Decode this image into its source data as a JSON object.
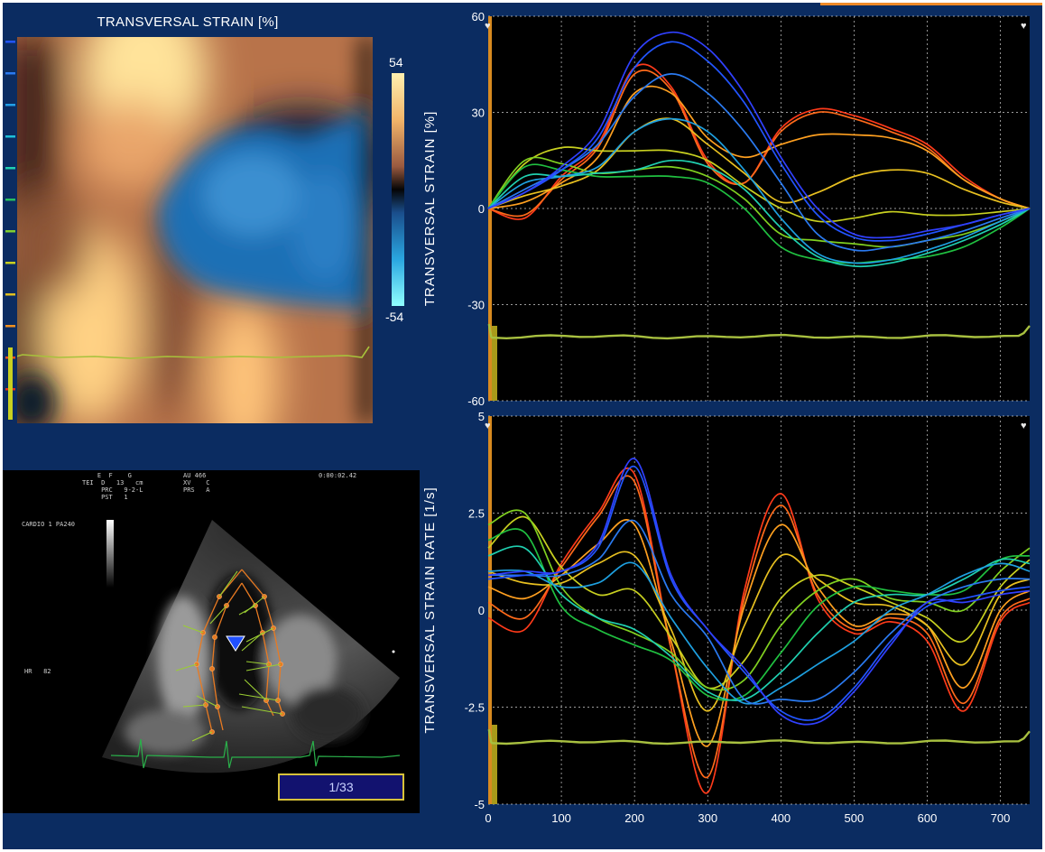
{
  "colormap": {
    "title": "TRANSVERSAL STRAIN [%]",
    "colorbar_max": "54",
    "colorbar_min": "-54",
    "segment_colors": [
      "#2255ff",
      "#2a7af0",
      "#22a0e8",
      "#1ec0d8",
      "#20d0b0",
      "#26c060",
      "#80d030",
      "#c8d020",
      "#e0c020",
      "#f09020",
      "#f05020",
      "#e03020"
    ]
  },
  "echo": {
    "meta_left": "    E  F    G\nTEI  D   13   cm\n     PRC   9-2-L\n     PST   1",
    "meta_mid": "AU 466\nXV    C\nPRS   A",
    "time": "0:00:02.42",
    "preset": "CARDIO 1 PA240",
    "hr": "HR   82",
    "frame_counter": "1/33"
  },
  "chart_data": [
    {
      "type": "line",
      "ylabel": "TRANSVERSAL STRAIN [%]",
      "ylim": [
        -60,
        60
      ],
      "xlim": [
        0,
        740
      ],
      "y_ticks": [
        {
          "v": 60,
          "label": "60"
        },
        {
          "v": 30,
          "label": "30"
        },
        {
          "v": 0,
          "label": "0"
        },
        {
          "v": -30,
          "label": "-30"
        },
        {
          "v": -60,
          "label": "-60"
        }
      ],
      "x": [
        0,
        50,
        100,
        150,
        200,
        250,
        300,
        350,
        400,
        450,
        500,
        550,
        600,
        650,
        700,
        740
      ],
      "series": [
        {
          "color": "#ff3a1a",
          "values": [
            0,
            -3,
            10,
            20,
            44,
            38,
            15,
            8,
            25,
            31,
            29,
            25,
            20,
            10,
            3,
            0
          ]
        },
        {
          "color": "#ff6a1a",
          "values": [
            0,
            -2,
            9,
            19,
            42,
            37,
            14,
            8,
            24,
            30,
            28,
            24,
            19,
            9,
            3,
            0
          ]
        },
        {
          "color": "#ffa020",
          "values": [
            0,
            2,
            8,
            16,
            36,
            36,
            22,
            16,
            20,
            23,
            23,
            22,
            18,
            9,
            3,
            0
          ]
        },
        {
          "color": "#e8c020",
          "values": [
            0,
            4,
            7,
            12,
            24,
            28,
            20,
            11,
            2,
            5,
            10,
            12,
            11,
            6,
            2,
            0
          ]
        },
        {
          "color": "#c8d020",
          "values": [
            0,
            14,
            19,
            18,
            18,
            18,
            15,
            7,
            0,
            -4,
            -3,
            -1,
            -2,
            -2,
            -1,
            0
          ]
        },
        {
          "color": "#80d020",
          "values": [
            0,
            15,
            14,
            11,
            12,
            13,
            10,
            3,
            -8,
            -10,
            -11,
            -12,
            -10,
            -8,
            -4,
            0
          ]
        },
        {
          "color": "#20c040",
          "values": [
            0,
            13,
            12,
            10,
            10,
            10,
            8,
            0,
            -12,
            -16,
            -17,
            -16,
            -15,
            -12,
            -6,
            0
          ]
        },
        {
          "color": "#20d0b0",
          "values": [
            0,
            10,
            10,
            11,
            12,
            15,
            13,
            6,
            -6,
            -15,
            -18,
            -17,
            -14,
            -10,
            -5,
            0
          ]
        },
        {
          "color": "#1ea0e0",
          "values": [
            0,
            8,
            10,
            13,
            24,
            28,
            24,
            12,
            -3,
            -14,
            -17,
            -16,
            -13,
            -9,
            -4,
            0
          ]
        },
        {
          "color": "#2a7af0",
          "values": [
            0,
            6,
            12,
            20,
            35,
            42,
            36,
            24,
            8,
            -8,
            -13,
            -12,
            -10,
            -7,
            -3,
            0
          ]
        },
        {
          "color": "#2255ff",
          "values": [
            0,
            5,
            12,
            22,
            44,
            52,
            46,
            33,
            14,
            -2,
            -9,
            -10,
            -8,
            -5,
            -2,
            0
          ]
        },
        {
          "color": "#3040ff",
          "values": [
            0,
            5,
            13,
            24,
            48,
            55,
            50,
            36,
            16,
            0,
            -8,
            -9,
            -7,
            -5,
            -2,
            0
          ]
        }
      ],
      "baseline_trace": {
        "color": "#a8c040",
        "value": -40
      }
    },
    {
      "type": "line",
      "ylabel": "TRANSVERSAL STRAIN RATE [1/s]",
      "ylim": [
        -5,
        5
      ],
      "xlim": [
        0,
        740
      ],
      "x_ticks": [
        {
          "v": 0,
          "label": "0"
        },
        {
          "v": 100,
          "label": "100"
        },
        {
          "v": 200,
          "label": "200"
        },
        {
          "v": 300,
          "label": "300"
        },
        {
          "v": 400,
          "label": "400"
        },
        {
          "v": 500,
          "label": "500"
        },
        {
          "v": 600,
          "label": "600"
        },
        {
          "v": 700,
          "label": "700"
        }
      ],
      "y_ticks": [
        {
          "v": 5,
          "label": "5"
        },
        {
          "v": 2.5,
          "label": "2.5"
        },
        {
          "v": 0,
          "label": "0"
        },
        {
          "v": -2.5,
          "label": "-2.5"
        },
        {
          "v": -5,
          "label": "-5"
        }
      ],
      "x": [
        0,
        50,
        100,
        150,
        200,
        250,
        300,
        350,
        400,
        450,
        500,
        550,
        600,
        650,
        700,
        740
      ],
      "series": [
        {
          "color": "#ff3a1a",
          "values": [
            -0.2,
            -0.5,
            1.2,
            2.5,
            3.5,
            -1.0,
            -4.7,
            0.5,
            3.0,
            0.3,
            -0.6,
            -0.3,
            -0.8,
            -2.6,
            -0.3,
            0.2
          ]
        },
        {
          "color": "#ff6a1a",
          "values": [
            0.2,
            -0.2,
            1.1,
            2.4,
            3.3,
            -1.0,
            -4.3,
            0.3,
            2.7,
            0.4,
            -0.5,
            -0.2,
            -0.6,
            -2.4,
            -0.2,
            0.3
          ]
        },
        {
          "color": "#ffa020",
          "values": [
            0.6,
            0.3,
            0.9,
            1.7,
            2.2,
            -0.8,
            -3.5,
            0.1,
            2.2,
            0.6,
            -0.4,
            -0.1,
            -0.4,
            -2.0,
            0.0,
            0.5
          ]
        },
        {
          "color": "#e8c020",
          "values": [
            1.0,
            0.7,
            0.7,
            1.2,
            1.4,
            -0.5,
            -2.6,
            -0.4,
            1.4,
            0.8,
            0.2,
            0.1,
            -0.4,
            -1.4,
            0.4,
            0.8
          ]
        },
        {
          "color": "#c8d020",
          "values": [
            1.6,
            2.4,
            1.1,
            0.4,
            0.5,
            -0.7,
            -2.0,
            -1.3,
            0.3,
            0.9,
            0.6,
            0.2,
            -0.2,
            -0.8,
            0.6,
            1.3
          ]
        },
        {
          "color": "#80d020",
          "values": [
            2.2,
            2.5,
            0.6,
            -0.2,
            -0.6,
            -1.1,
            -2.0,
            -1.8,
            -0.4,
            0.5,
            0.8,
            0.3,
            0.2,
            0.0,
            1.0,
            1.6
          ]
        },
        {
          "color": "#20c040",
          "values": [
            1.8,
            2.0,
            0.1,
            -0.5,
            -0.9,
            -1.3,
            -2.2,
            -2.2,
            -1.1,
            0.1,
            0.6,
            0.5,
            0.4,
            0.5,
            1.3,
            1.4
          ]
        },
        {
          "color": "#20d0b0",
          "values": [
            1.4,
            1.6,
            0.4,
            -0.2,
            -0.5,
            -1.2,
            -2.1,
            -2.3,
            -1.6,
            -0.6,
            0.2,
            0.4,
            0.4,
            0.8,
            1.3,
            1.2
          ]
        },
        {
          "color": "#1ea0e0",
          "values": [
            1.0,
            1.0,
            0.6,
            0.7,
            1.2,
            -0.2,
            -1.5,
            -2.4,
            -2.0,
            -1.4,
            -0.8,
            0.0,
            0.4,
            0.9,
            1.2,
            1.0
          ]
        },
        {
          "color": "#2a7af0",
          "values": [
            0.9,
            0.9,
            0.9,
            1.3,
            2.3,
            0.4,
            -0.7,
            -2.3,
            -2.3,
            -2.3,
            -1.6,
            -0.6,
            0.2,
            0.6,
            0.8,
            0.8
          ]
        },
        {
          "color": "#2255ff",
          "values": [
            0.8,
            0.9,
            1.0,
            1.6,
            3.7,
            0.8,
            -0.5,
            -1.6,
            -2.6,
            -2.8,
            -2.0,
            -0.8,
            0.1,
            0.3,
            0.5,
            0.6
          ]
        },
        {
          "color": "#3040ff",
          "values": [
            0.9,
            1.0,
            1.0,
            1.7,
            3.9,
            0.9,
            -0.5,
            -1.5,
            -2.7,
            -2.9,
            -2.1,
            -0.9,
            0.2,
            0.2,
            0.4,
            0.5
          ]
        }
      ],
      "baseline_trace": {
        "color": "#a8c040",
        "value": -3.4
      }
    }
  ]
}
